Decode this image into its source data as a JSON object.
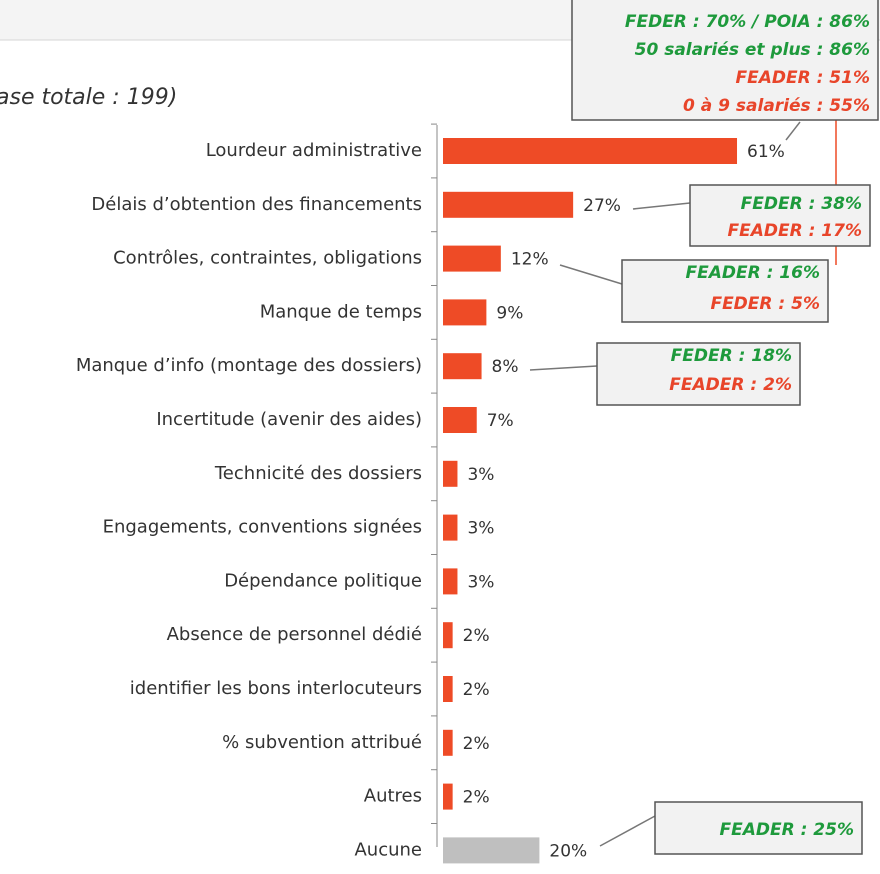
{
  "chart_data": {
    "type": "bar",
    "orientation": "horizontal",
    "title": "ase totale : 199)",
    "categories": [
      "Lourdeur administrative",
      "Délais d’obtention des financements",
      "Contrôles, contraintes, obligations",
      "Manque de temps",
      "Manque d’info (montage des dossiers)",
      "Incertitude (avenir des aides)",
      "Technicité des dossiers",
      "Engagements, conventions signées",
      "Dépendance politique",
      "Absence de personnel dédié",
      "identifier les bons interlocuteurs",
      "% subvention attribué",
      "Autres",
      "Aucune"
    ],
    "values": [
      61,
      27,
      12,
      9,
      8,
      7,
      3,
      3,
      3,
      2,
      2,
      2,
      2,
      20
    ],
    "value_labels": [
      "61%",
      "27%",
      "12%",
      "9%",
      "8%",
      "7%",
      "3%",
      "3%",
      "3%",
      "2%",
      "2%",
      "2%",
      "2%",
      "20%"
    ],
    "colors": [
      "#ee4b26",
      "#ee4b26",
      "#ee4b26",
      "#ee4b26",
      "#ee4b26",
      "#ee4b26",
      "#ee4b26",
      "#ee4b26",
      "#ee4b26",
      "#ee4b26",
      "#ee4b26",
      "#ee4b26",
      "#ee4b26",
      "#bfbfbf"
    ],
    "annotations": [
      {
        "lines": [
          {
            "text": "FEDER : 70% / POIA : 86%",
            "color": "#1e9a3c"
          },
          {
            "text": "50 salariés et plus : 86%",
            "color": "#1e9a3c"
          },
          {
            "text": "FEADER : 51%",
            "color": "#e8452a"
          },
          {
            "text": "0 à 9 salariés : 55%",
            "color": "#e8452a"
          }
        ]
      },
      {
        "lines": [
          {
            "text": "FEDER : 38%",
            "color": "#1e9a3c"
          },
          {
            "text": "FEADER : 17%",
            "color": "#e8452a"
          }
        ]
      },
      {
        "lines": [
          {
            "text": "FEADER : 16%",
            "color": "#1e9a3c"
          },
          {
            "text": "FEDER : 5%",
            "color": "#e8452a"
          }
        ]
      },
      {
        "lines": [
          {
            "text": "FEDER : 18%",
            "color": "#1e9a3c"
          },
          {
            "text": "FEADER : 2%",
            "color": "#e8452a"
          }
        ]
      },
      {
        "lines": [
          {
            "text": "FEADER : 25%",
            "color": "#1e9a3c"
          }
        ]
      }
    ]
  }
}
